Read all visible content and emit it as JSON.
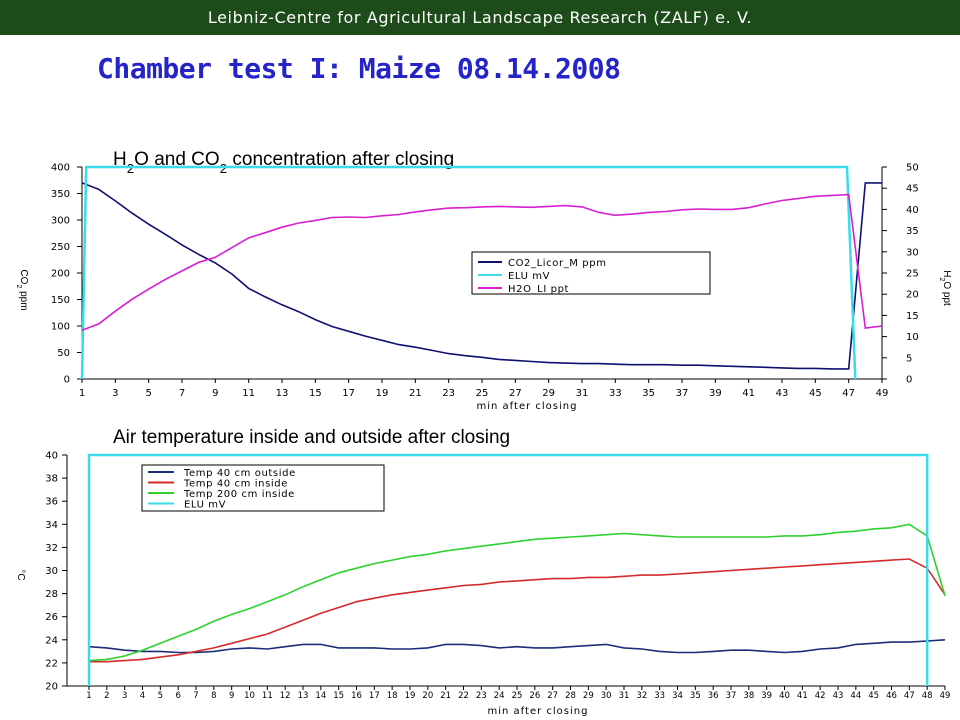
{
  "header": {
    "text": "Leibniz-Centre for Agricultural Landscape Research (ZALF) e. V."
  },
  "title": "Chamber test I: Maize 08.14.2008",
  "colors": {
    "header_bg": "#1d4b1a",
    "title": "#2424c8"
  },
  "chart_data": [
    {
      "type": "line",
      "title_parts": [
        "H",
        "2",
        "O and CO",
        "2",
        " concentration after closing"
      ],
      "xlabel": "min after closing",
      "ylabel_left_parts": [
        "CO",
        "2",
        " ppm"
      ],
      "ylabel_right_parts": [
        "H",
        "2",
        "O ppt"
      ],
      "xlim": [
        1,
        49
      ],
      "x_ticks": [
        1,
        3,
        5,
        7,
        9,
        11,
        13,
        15,
        17,
        19,
        21,
        23,
        25,
        27,
        29,
        31,
        33,
        35,
        37,
        39,
        41,
        43,
        45,
        47,
        49
      ],
      "ylim_left": [
        0,
        400
      ],
      "y_ticks_left": [
        0,
        50,
        100,
        150,
        200,
        250,
        300,
        350,
        400
      ],
      "ylim_right": [
        0,
        50
      ],
      "y_ticks_right": [
        0,
        5,
        10,
        15,
        20,
        25,
        30,
        35,
        40,
        45,
        50
      ],
      "grid": false,
      "legend_position": "center-right",
      "series": [
        {
          "name": "CO2_Licor_M ppm",
          "color": "#101070",
          "axis": "left",
          "x": [
            1,
            2,
            3,
            4,
            5,
            6,
            7,
            8,
            9,
            10,
            11,
            12,
            13,
            14,
            15,
            16,
            17,
            18,
            19,
            20,
            21,
            22,
            23,
            24,
            25,
            26,
            27,
            28,
            29,
            30,
            31,
            32,
            33,
            34,
            35,
            36,
            37,
            38,
            39,
            40,
            41,
            42,
            43,
            44,
            45,
            46,
            47,
            48,
            49
          ],
          "y": [
            370,
            358,
            336,
            313,
            292,
            273,
            253,
            235,
            219,
            198,
            171,
            155,
            140,
            127,
            112,
            99,
            90,
            81,
            73,
            65,
            60,
            54,
            48,
            44,
            41,
            37,
            35,
            33,
            31,
            30,
            29,
            29,
            28,
            27,
            27,
            27,
            26,
            26,
            25,
            24,
            23,
            22,
            21,
            20,
            20,
            19,
            19,
            370,
            370
          ]
        },
        {
          "name": "ELU mV",
          "color": "#3adcec",
          "axis": "left",
          "x": [
            1,
            1.25,
            46.9,
            47.4
          ],
          "y": [
            0,
            400,
            400,
            0
          ]
        },
        {
          "name": "H2O_LI ppt",
          "color": "#d81ed0",
          "axis": "right",
          "x": [
            1,
            2,
            3,
            4,
            5,
            6,
            7,
            8,
            9,
            10,
            11,
            12,
            13,
            14,
            15,
            16,
            17,
            18,
            19,
            20,
            21,
            22,
            23,
            24,
            25,
            26,
            27,
            28,
            29,
            30,
            31,
            32,
            33,
            34,
            35,
            36,
            37,
            38,
            39,
            40,
            41,
            42,
            43,
            44,
            45,
            46,
            47,
            48,
            49
          ],
          "y": [
            11.5,
            13,
            16,
            18.8,
            21.2,
            23.5,
            25.5,
            27.5,
            28.7,
            31,
            33.3,
            34.5,
            35.8,
            36.8,
            37.4,
            38.1,
            38.2,
            38.1,
            38.5,
            38.8,
            39.4,
            39.9,
            40.3,
            40.4,
            40.6,
            40.7,
            40.6,
            40.5,
            40.7,
            40.9,
            40.6,
            39.3,
            38.6,
            38.9,
            39.3,
            39.5,
            39.9,
            40.1,
            40.0,
            40.0,
            40.4,
            41.3,
            42.1,
            42.6,
            43.1,
            43.3,
            43.5,
            12,
            12.5
          ]
        }
      ]
    },
    {
      "type": "line",
      "title": "Air temperature inside and outside after closing",
      "xlabel": "min after closing",
      "ylabel": "°C",
      "xlim": [
        1,
        49
      ],
      "x_ticks": [
        1,
        2,
        3,
        4,
        5,
        6,
        7,
        8,
        9,
        10,
        11,
        12,
        13,
        14,
        15,
        16,
        17,
        18,
        19,
        20,
        21,
        22,
        23,
        24,
        25,
        26,
        27,
        28,
        29,
        30,
        31,
        32,
        33,
        34,
        35,
        36,
        37,
        38,
        39,
        40,
        41,
        42,
        43,
        44,
        45,
        46,
        47,
        48,
        49
      ],
      "ylim": [
        20,
        40
      ],
      "y_ticks": [
        20,
        22,
        24,
        26,
        28,
        30,
        32,
        34,
        36,
        38,
        40
      ],
      "grid": false,
      "legend_position": "top-left",
      "series": [
        {
          "name": "Temp 40 cm outside",
          "color": "#1c2c78",
          "x": [
            1,
            2,
            3,
            4,
            5,
            6,
            7,
            8,
            9,
            10,
            11,
            12,
            13,
            14,
            15,
            16,
            17,
            18,
            19,
            20,
            21,
            22,
            23,
            24,
            25,
            26,
            27,
            28,
            29,
            30,
            31,
            32,
            33,
            34,
            35,
            36,
            37,
            38,
            39,
            40,
            41,
            42,
            43,
            44,
            45,
            46,
            47,
            48,
            49
          ],
          "y": [
            23.4,
            23.3,
            23.1,
            23.0,
            23.0,
            22.9,
            22.9,
            23.0,
            23.2,
            23.3,
            23.2,
            23.4,
            23.6,
            23.6,
            23.3,
            23.3,
            23.3,
            23.2,
            23.2,
            23.3,
            23.6,
            23.6,
            23.5,
            23.3,
            23.4,
            23.3,
            23.3,
            23.4,
            23.5,
            23.6,
            23.3,
            23.2,
            23.0,
            22.9,
            22.9,
            23.0,
            23.1,
            23.1,
            23.0,
            22.9,
            23.0,
            23.2,
            23.3,
            23.6,
            23.7,
            23.8,
            23.8,
            23.9,
            24.0
          ]
        },
        {
          "name": "Temp 40 cm inside",
          "color": "#d42a2a",
          "x": [
            1,
            2,
            3,
            4,
            5,
            6,
            7,
            8,
            9,
            10,
            11,
            12,
            13,
            14,
            15,
            16,
            17,
            18,
            19,
            20,
            21,
            22,
            23,
            24,
            25,
            26,
            27,
            28,
            29,
            30,
            31,
            32,
            33,
            34,
            35,
            36,
            37,
            38,
            39,
            40,
            41,
            42,
            43,
            44,
            45,
            46,
            47,
            48,
            49
          ],
          "y": [
            22.1,
            22.1,
            22.2,
            22.3,
            22.5,
            22.7,
            23.0,
            23.3,
            23.7,
            24.1,
            24.5,
            25.1,
            25.7,
            26.3,
            26.8,
            27.3,
            27.6,
            27.9,
            28.1,
            28.3,
            28.5,
            28.7,
            28.8,
            29.0,
            29.1,
            29.2,
            29.3,
            29.3,
            29.4,
            29.4,
            29.5,
            29.6,
            29.6,
            29.7,
            29.8,
            29.9,
            30.0,
            30.1,
            30.2,
            30.3,
            30.4,
            30.5,
            30.6,
            30.7,
            30.8,
            30.9,
            31.0,
            30.2,
            27.9
          ]
        },
        {
          "name": "Temp 200 cm inside",
          "color": "#2ed22e",
          "x": [
            1,
            2,
            3,
            4,
            5,
            6,
            7,
            8,
            9,
            10,
            11,
            12,
            13,
            14,
            15,
            16,
            17,
            18,
            19,
            20,
            21,
            22,
            23,
            24,
            25,
            26,
            27,
            28,
            29,
            30,
            31,
            32,
            33,
            34,
            35,
            36,
            37,
            38,
            39,
            40,
            41,
            42,
            43,
            44,
            45,
            46,
            47,
            48,
            49
          ],
          "y": [
            22.2,
            22.3,
            22.6,
            23.1,
            23.7,
            24.3,
            24.9,
            25.6,
            26.2,
            26.7,
            27.3,
            27.9,
            28.6,
            29.2,
            29.8,
            30.2,
            30.6,
            30.9,
            31.2,
            31.4,
            31.7,
            31.9,
            32.1,
            32.3,
            32.5,
            32.7,
            32.8,
            32.9,
            33.0,
            33.1,
            33.2,
            33.1,
            33.0,
            32.9,
            32.9,
            32.9,
            32.9,
            32.9,
            32.9,
            33.0,
            33.0,
            33.1,
            33.3,
            33.4,
            33.6,
            33.7,
            34.0,
            33.0,
            27.8
          ]
        },
        {
          "name": "ELU mV",
          "color": "#3adcec",
          "x": [
            1,
            1,
            48,
            48
          ],
          "y": [
            20,
            40,
            40,
            20
          ]
        }
      ]
    }
  ]
}
